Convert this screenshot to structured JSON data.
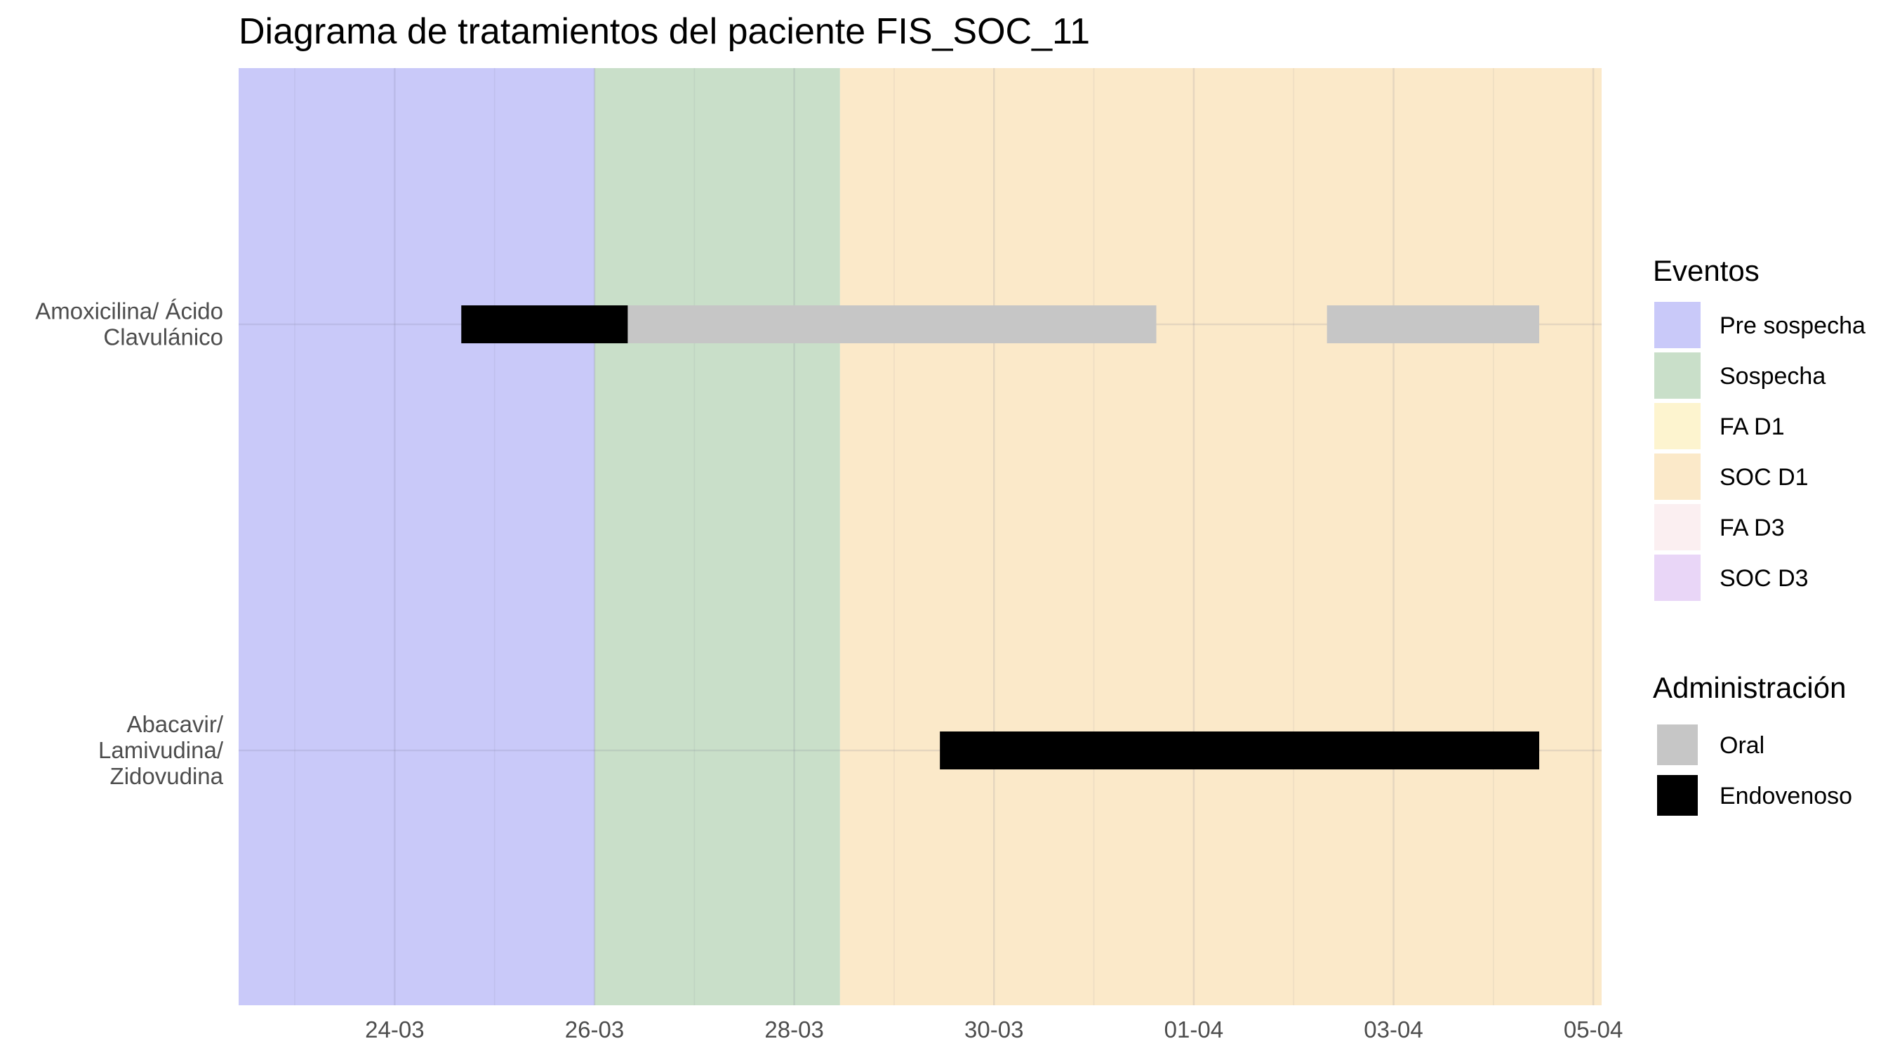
{
  "chart_data": {
    "type": "gantt",
    "title": "Diagrama de tratamientos del paciente FIS_SOC_11",
    "xlabel": "",
    "ylabel": "",
    "x_axis": {
      "range": [
        "2024-03-22T10:30",
        "2024-04-05T02:00"
      ],
      "ticks": [
        {
          "date": "2024-03-24",
          "label": "24-03"
        },
        {
          "date": "2024-03-26",
          "label": "26-03"
        },
        {
          "date": "2024-03-28",
          "label": "28-03"
        },
        {
          "date": "2024-03-30",
          "label": "30-03"
        },
        {
          "date": "2024-04-01",
          "label": "01-04"
        },
        {
          "date": "2024-04-03",
          "label": "03-04"
        },
        {
          "date": "2024-04-05",
          "label": "05-04"
        }
      ]
    },
    "categories": [
      {
        "id": "amox",
        "label_lines": [
          "Amoxicilina/ Ácido",
          "Clavulánico"
        ]
      },
      {
        "id": "abac",
        "label_lines": [
          "Abacavir/",
          "Lamivudina/",
          "Zidovudina"
        ]
      }
    ],
    "periods": [
      {
        "event": "Pre sospecha",
        "start": "2024-03-22T10:30",
        "end": "2024-03-26T00:00"
      },
      {
        "event": "Sospecha",
        "start": "2024-03-26T00:00",
        "end": "2024-03-28T11:00"
      },
      {
        "event": "SOC D1",
        "start": "2024-03-28T11:00",
        "end": "2024-04-05T02:00"
      }
    ],
    "treatments": [
      {
        "drug": "amox",
        "route": "Endovenoso",
        "start": "2024-03-24T16:00",
        "end": "2024-03-26T08:00"
      },
      {
        "drug": "amox",
        "route": "Oral",
        "start": "2024-03-26T08:00",
        "end": "2024-03-31T15:00"
      },
      {
        "drug": "amox",
        "route": "Oral",
        "start": "2024-04-02T08:00",
        "end": "2024-04-04T11:00"
      },
      {
        "drug": "abac",
        "route": "Endovenoso",
        "start": "2024-03-29T11:00",
        "end": "2024-04-04T11:00"
      }
    ],
    "grid": true,
    "legend_position": "right"
  },
  "legend": {
    "eventos_title": "Eventos",
    "eventos": [
      {
        "label": "Pre sospecha",
        "color": "#c9c9f9"
      },
      {
        "label": "Sospecha",
        "color": "#c9dfc9"
      },
      {
        "label": "FA D1",
        "color": "#fdf4cf"
      },
      {
        "label": "SOC D1",
        "color": "#fbe9c9"
      },
      {
        "label": "FA D3",
        "color": "#fbeff1"
      },
      {
        "label": "SOC D3",
        "color": "#e9d6f7"
      }
    ],
    "admin_title": "Administración",
    "administracion": [
      {
        "label": "Oral",
        "color": "#c6c6c6"
      },
      {
        "label": "Endovenoso",
        "color": "#000000"
      }
    ]
  }
}
